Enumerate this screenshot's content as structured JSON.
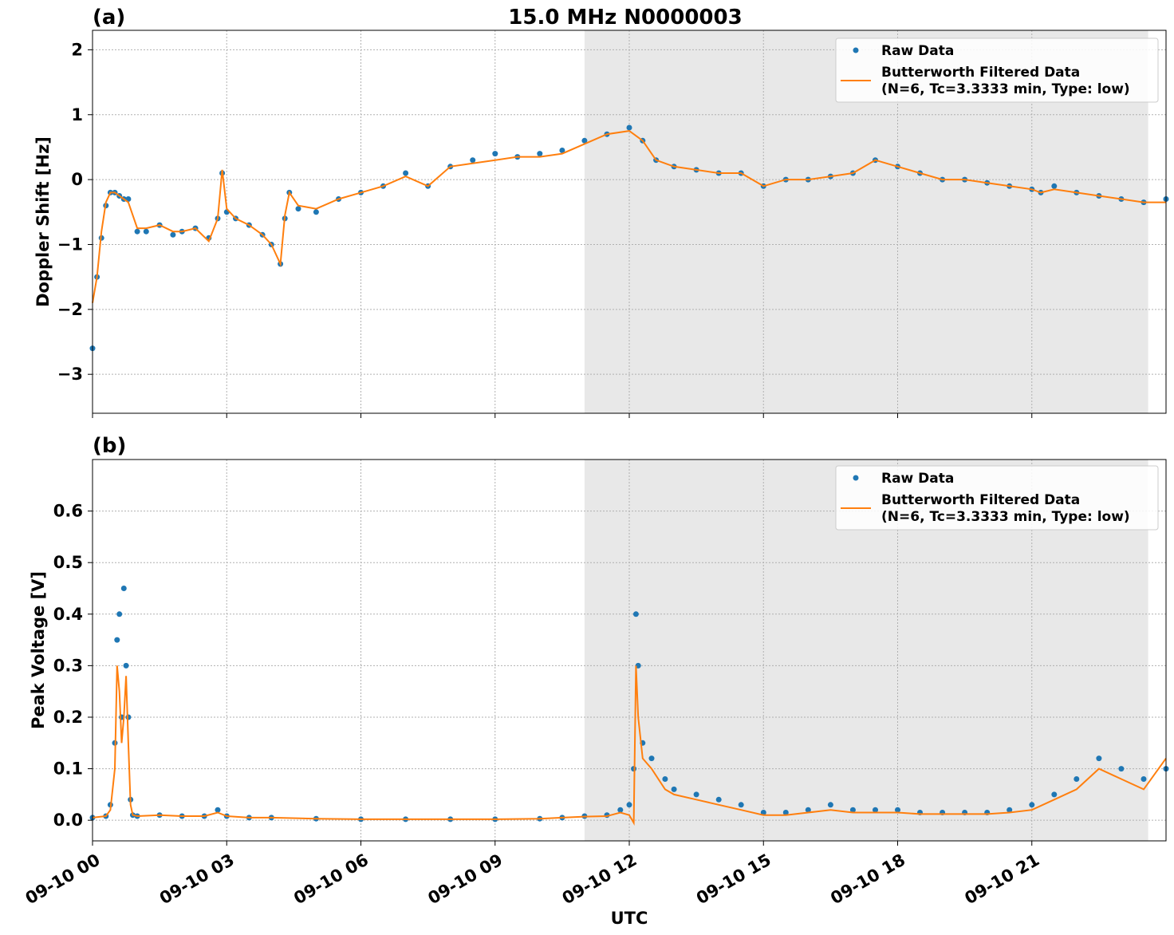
{
  "figure": {
    "title": "15.0 MHz N0000003",
    "xlabel": "UTC",
    "x_tick_labels": [
      "09-10 00",
      "09-10 03",
      "09-10 06",
      "09-10 09",
      "09-10 12",
      "09-10 15",
      "09-10 18",
      "09-10 21"
    ]
  },
  "colors": {
    "raw": "#1f77b4",
    "filtered": "#ff7f0e",
    "shade": "#e8e8e8"
  },
  "legend": {
    "raw": "Raw Data",
    "filtered_line1": "Butterworth Filtered Data",
    "filtered_line2": "(N=6, Tc=3.3333 min, Type: low)"
  },
  "chart_data": [
    {
      "type": "scatter",
      "panel_label": "(a)",
      "ylabel": "Doppler Shift [Hz]",
      "x_unit": "hours UTC on 09-10",
      "xlim": [
        0,
        24
      ],
      "ylim": [
        -3.6,
        2.3
      ],
      "y_ticks": [
        2,
        1,
        0,
        -1,
        -2,
        -3
      ],
      "y_tick_labels": [
        "2",
        "1",
        "0",
        "−1",
        "−2",
        "−3"
      ],
      "grid": true,
      "legend_position": "top-right",
      "shaded_x_range": [
        11.0,
        23.6
      ],
      "series": [
        {
          "name": "Raw Data",
          "style": "points",
          "x": [
            0.0,
            0.1,
            0.2,
            0.3,
            0.4,
            0.5,
            0.6,
            0.7,
            0.8,
            1.0,
            1.2,
            1.5,
            1.8,
            2.0,
            2.3,
            2.6,
            2.8,
            2.9,
            3.0,
            3.2,
            3.5,
            3.8,
            4.0,
            4.2,
            4.3,
            4.4,
            4.6,
            5.0,
            5.5,
            6.0,
            6.5,
            7.0,
            7.5,
            8.0,
            8.5,
            9.0,
            9.5,
            10.0,
            10.5,
            11.0,
            11.5,
            12.0,
            12.3,
            12.6,
            13.0,
            13.5,
            14.0,
            14.5,
            15.0,
            15.5,
            16.0,
            16.5,
            17.0,
            17.5,
            18.0,
            18.5,
            19.0,
            19.5,
            20.0,
            20.5,
            21.0,
            21.2,
            21.5,
            22.0,
            22.5,
            23.0,
            23.5,
            24.0
          ],
          "y": [
            -2.6,
            -1.5,
            -0.9,
            -0.4,
            -0.2,
            -0.2,
            -0.25,
            -0.3,
            -0.3,
            -0.8,
            -0.8,
            -0.7,
            -0.85,
            -0.8,
            -0.75,
            -0.9,
            -0.6,
            0.1,
            -0.5,
            -0.6,
            -0.7,
            -0.85,
            -1.0,
            -1.3,
            -0.6,
            -0.2,
            -0.45,
            -0.5,
            -0.3,
            -0.2,
            -0.1,
            0.1,
            -0.1,
            0.2,
            0.3,
            0.4,
            0.35,
            0.4,
            0.45,
            0.6,
            0.7,
            0.8,
            0.6,
            0.3,
            0.2,
            0.15,
            0.1,
            0.1,
            -0.1,
            0.0,
            0.0,
            0.05,
            0.1,
            0.3,
            0.2,
            0.1,
            0.0,
            0.0,
            -0.05,
            -0.1,
            -0.15,
            -0.2,
            -0.1,
            -0.2,
            -0.25,
            -0.3,
            -0.35,
            -0.3
          ]
        },
        {
          "name": "Butterworth Filtered Data",
          "style": "line",
          "x": [
            0.0,
            0.1,
            0.2,
            0.3,
            0.4,
            0.5,
            0.6,
            0.7,
            0.8,
            1.0,
            1.2,
            1.5,
            1.8,
            2.0,
            2.3,
            2.6,
            2.8,
            2.9,
            3.0,
            3.2,
            3.5,
            3.8,
            4.0,
            4.2,
            4.3,
            4.4,
            4.6,
            5.0,
            5.5,
            6.0,
            6.5,
            7.0,
            7.5,
            8.0,
            8.5,
            9.0,
            9.5,
            10.0,
            10.5,
            11.0,
            11.5,
            12.0,
            12.3,
            12.6,
            13.0,
            13.5,
            14.0,
            14.5,
            15.0,
            15.5,
            16.0,
            16.5,
            17.0,
            17.5,
            18.0,
            18.5,
            19.0,
            19.5,
            20.0,
            20.5,
            21.0,
            21.2,
            21.5,
            22.0,
            22.5,
            23.0,
            23.5,
            24.0
          ],
          "y": [
            -1.9,
            -1.5,
            -0.8,
            -0.35,
            -0.2,
            -0.2,
            -0.25,
            -0.3,
            -0.35,
            -0.75,
            -0.75,
            -0.7,
            -0.8,
            -0.8,
            -0.75,
            -0.95,
            -0.6,
            0.15,
            -0.45,
            -0.6,
            -0.7,
            -0.85,
            -1.0,
            -1.3,
            -0.55,
            -0.2,
            -0.4,
            -0.45,
            -0.3,
            -0.2,
            -0.1,
            0.05,
            -0.1,
            0.2,
            0.25,
            0.3,
            0.35,
            0.35,
            0.4,
            0.55,
            0.7,
            0.75,
            0.6,
            0.3,
            0.2,
            0.15,
            0.1,
            0.1,
            -0.1,
            0.0,
            0.0,
            0.05,
            0.1,
            0.3,
            0.2,
            0.1,
            0.0,
            0.0,
            -0.05,
            -0.1,
            -0.15,
            -0.2,
            -0.15,
            -0.2,
            -0.25,
            -0.3,
            -0.35,
            -0.35
          ]
        }
      ]
    },
    {
      "type": "scatter",
      "panel_label": "(b)",
      "ylabel": "Peak Voltage [V]",
      "x_unit": "hours UTC on 09-10",
      "xlim": [
        0,
        24
      ],
      "ylim": [
        -0.04,
        0.7
      ],
      "y_ticks": [
        0.0,
        0.1,
        0.2,
        0.3,
        0.4,
        0.5,
        0.6
      ],
      "y_tick_labels": [
        "0.0",
        "0.1",
        "0.2",
        "0.3",
        "0.4",
        "0.5",
        "0.6"
      ],
      "grid": true,
      "legend_position": "top-right",
      "shaded_x_range": [
        11.0,
        23.6
      ],
      "series": [
        {
          "name": "Raw Data",
          "style": "points",
          "x": [
            0.0,
            0.3,
            0.4,
            0.5,
            0.55,
            0.6,
            0.65,
            0.7,
            0.75,
            0.8,
            0.85,
            0.9,
            1.0,
            1.5,
            2.0,
            2.5,
            2.8,
            3.0,
            3.5,
            4.0,
            5.0,
            6.0,
            7.0,
            8.0,
            9.0,
            10.0,
            10.5,
            11.0,
            11.5,
            11.8,
            12.0,
            12.1,
            12.15,
            12.2,
            12.3,
            12.5,
            12.8,
            13.0,
            13.5,
            14.0,
            14.5,
            15.0,
            15.5,
            16.0,
            16.5,
            17.0,
            17.5,
            18.0,
            18.5,
            19.0,
            19.5,
            20.0,
            20.5,
            21.0,
            21.5,
            22.0,
            22.5,
            23.0,
            23.5,
            24.0
          ],
          "y": [
            0.005,
            0.008,
            0.03,
            0.15,
            0.35,
            0.4,
            0.2,
            0.45,
            0.3,
            0.2,
            0.04,
            0.01,
            0.008,
            0.01,
            0.008,
            0.008,
            0.02,
            0.008,
            0.005,
            0.005,
            0.003,
            0.002,
            0.002,
            0.002,
            0.002,
            0.003,
            0.005,
            0.008,
            0.01,
            0.02,
            0.03,
            0.1,
            0.4,
            0.3,
            0.15,
            0.12,
            0.08,
            0.06,
            0.05,
            0.04,
            0.03,
            0.015,
            0.015,
            0.02,
            0.03,
            0.02,
            0.02,
            0.02,
            0.015,
            0.015,
            0.015,
            0.015,
            0.02,
            0.03,
            0.05,
            0.08,
            0.12,
            0.1,
            0.08,
            0.1
          ]
        },
        {
          "name": "Butterworth Filtered Data",
          "style": "line",
          "x": [
            0.0,
            0.3,
            0.4,
            0.5,
            0.55,
            0.6,
            0.65,
            0.7,
            0.75,
            0.8,
            0.85,
            0.9,
            1.0,
            1.5,
            2.0,
            2.5,
            2.8,
            3.0,
            3.5,
            4.0,
            5.0,
            6.0,
            7.0,
            8.0,
            9.0,
            10.0,
            10.5,
            11.0,
            11.5,
            11.8,
            12.0,
            12.1,
            12.15,
            12.2,
            12.3,
            12.5,
            12.8,
            13.0,
            13.5,
            14.0,
            14.5,
            15.0,
            15.5,
            16.0,
            16.5,
            17.0,
            17.5,
            18.0,
            18.5,
            19.0,
            19.5,
            20.0,
            20.5,
            21.0,
            21.5,
            22.0,
            22.5,
            23.0,
            23.5,
            24.0
          ],
          "y": [
            0.005,
            0.008,
            0.02,
            0.1,
            0.3,
            0.25,
            0.15,
            0.2,
            0.28,
            0.15,
            0.03,
            0.01,
            0.008,
            0.01,
            0.008,
            0.008,
            0.015,
            0.008,
            0.005,
            0.005,
            0.003,
            0.002,
            0.002,
            0.002,
            0.002,
            0.003,
            0.005,
            0.007,
            0.008,
            0.015,
            0.01,
            -0.005,
            0.3,
            0.2,
            0.12,
            0.1,
            0.06,
            0.05,
            0.04,
            0.03,
            0.02,
            0.01,
            0.01,
            0.015,
            0.02,
            0.015,
            0.015,
            0.015,
            0.012,
            0.012,
            0.012,
            0.012,
            0.015,
            0.02,
            0.04,
            0.06,
            0.1,
            0.08,
            0.06,
            0.12
          ]
        }
      ]
    }
  ]
}
